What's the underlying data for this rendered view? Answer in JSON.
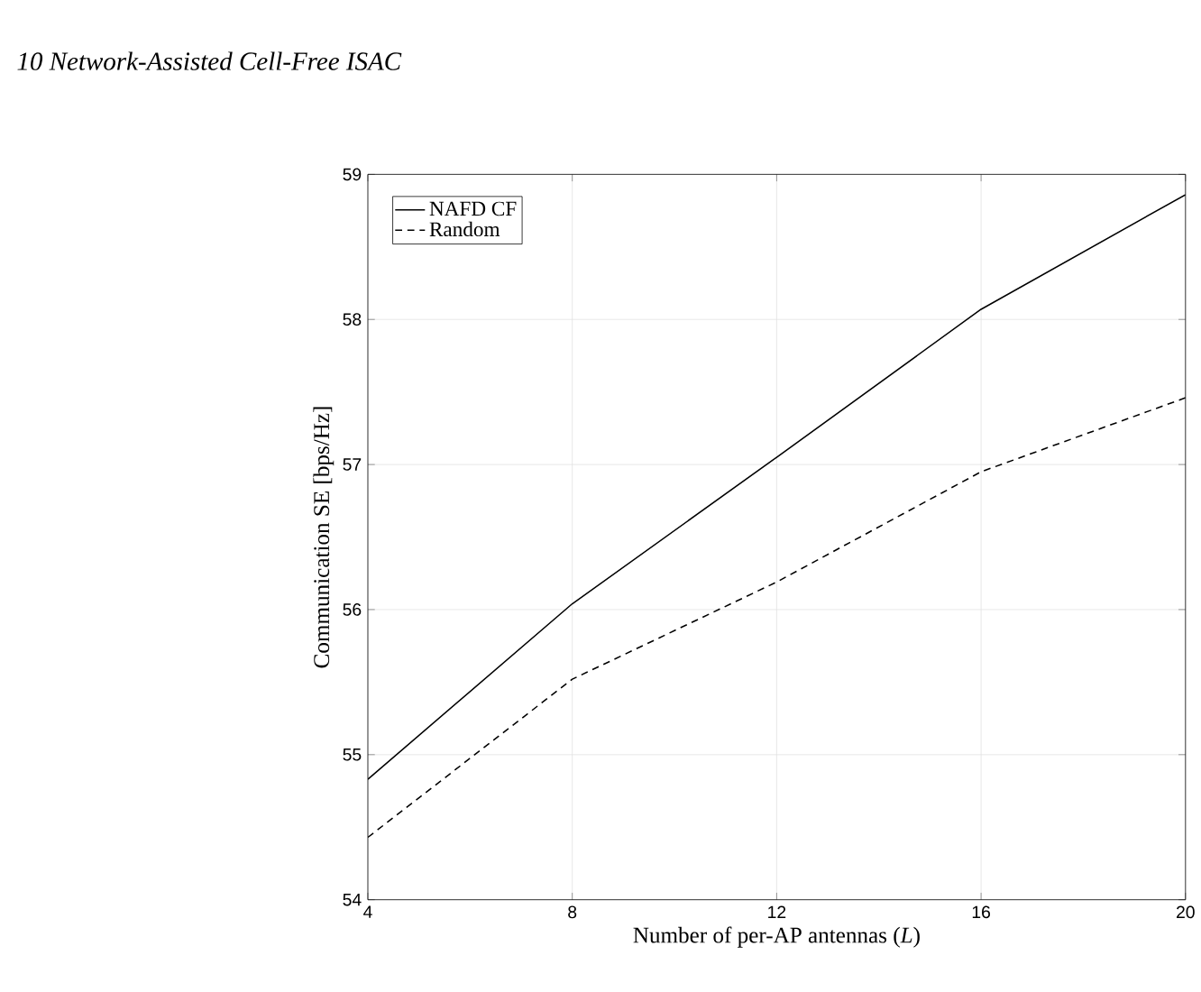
{
  "chart_data": {
    "type": "line",
    "xlabel": "Number of per-AP antennas (*L*)",
    "ylabel": "Communication SE [bps/Hz]",
    "annotations": [
      "10 Network-Assisted Cell-Free ISAC"
    ],
    "x": [
      4,
      8,
      12,
      16,
      20
    ],
    "series": [
      {
        "name": "NAFD CF",
        "color": "#000000",
        "line_style": "solid",
        "values": [
          54.83,
          56.04,
          57.05,
          58.07,
          58.86
        ]
      },
      {
        "name": "Random",
        "color": "#000000",
        "line_style": "dashed",
        "values": [
          54.43,
          55.52,
          56.19,
          56.95,
          57.46
        ]
      }
    ],
    "xlim": [
      4,
      20
    ],
    "ylim": [
      54,
      59
    ],
    "xticks": [
      4,
      8,
      12,
      16,
      20
    ],
    "yticks": [
      54,
      55,
      56,
      57,
      58,
      59
    ],
    "grid": true,
    "legend": "top left",
    "marker": "none"
  }
}
